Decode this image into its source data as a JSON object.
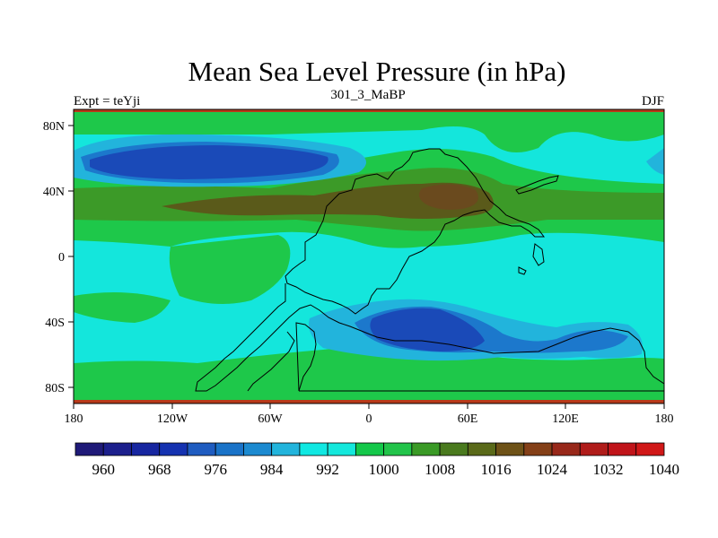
{
  "title": "Mean Sea Level Pressure (in hPa)",
  "left_label": "Expt = teYji",
  "center_label": "301_3_MaBP",
  "right_label": "DJF",
  "x_ticks": [
    "180",
    "120W",
    "60W",
    "0",
    "60E",
    "120E",
    "180"
  ],
  "y_ticks": [
    "80N",
    "40N",
    "0",
    "40S",
    "80S"
  ],
  "colorbar_labels": [
    "960",
    "968",
    "976",
    "984",
    "992",
    "1000",
    "1008",
    "1016",
    "1024",
    "1032",
    "1040"
  ],
  "colorbar_colors": [
    "#1f1a78",
    "#1c1f8c",
    "#1726a0",
    "#1532b0",
    "#1f5cc0",
    "#1a73c8",
    "#1c8ad0",
    "#22b4dc",
    "#10e8e2",
    "#14e8dc",
    "#14c84a",
    "#22c44a",
    "#3a9a26",
    "#4a7a1e",
    "#5a6a1a",
    "#6e5218",
    "#844018",
    "#98281a",
    "#b01c1a",
    "#c0141a",
    "#d01818"
  ],
  "map_colors": {
    "ocean_base": "#14e6dc",
    "mid_lat_green": "#1ec84a",
    "dark_green": "#3c9a28",
    "brown": "#5a5a1a",
    "dark_brown": "#6a4a1e",
    "light_blue": "#22b4dc",
    "mid_blue": "#1c78cc",
    "deep_blue": "#1a4ab8",
    "polar_red": "#b83a1a"
  }
}
